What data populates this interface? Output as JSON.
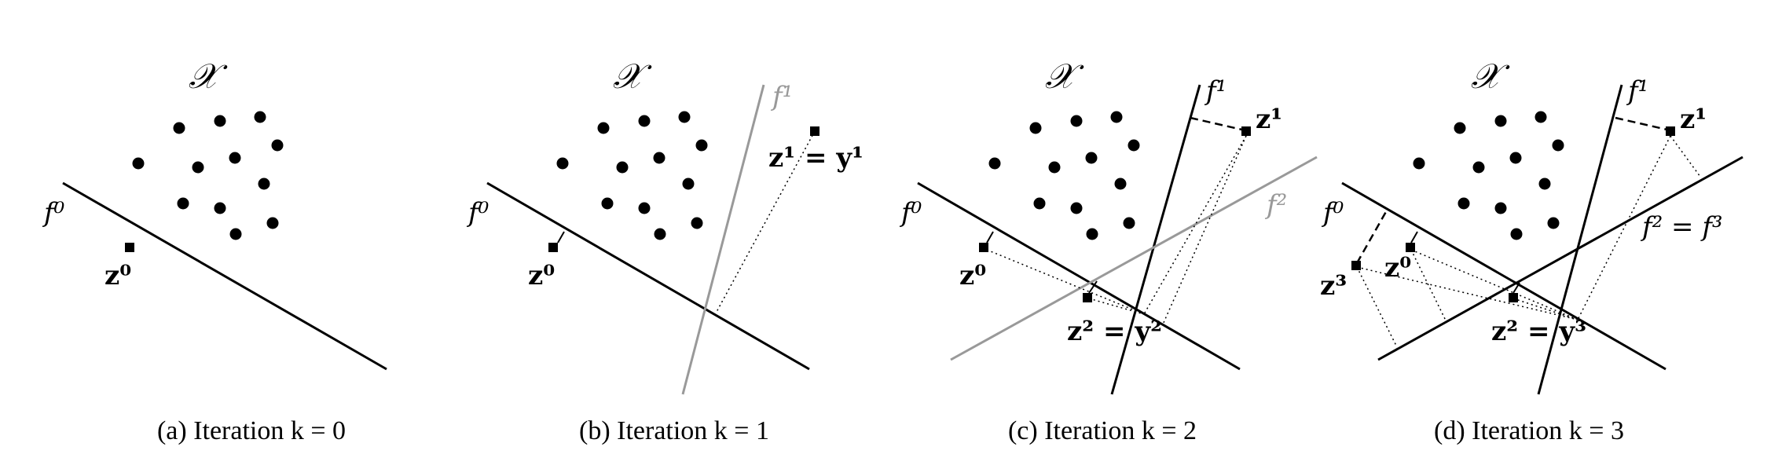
{
  "panels": [
    {
      "caption": "(a) Iteration k = 0",
      "set_label": "𝒳",
      "lines": [
        "f⁰"
      ],
      "points": [
        "z⁰"
      ]
    },
    {
      "caption": "(b) Iteration k = 1",
      "set_label": "𝒳",
      "lines": [
        "f⁰",
        "f¹"
      ],
      "points": [
        "z⁰",
        "z¹ = y¹"
      ]
    },
    {
      "caption": "(c) Iteration k = 2",
      "set_label": "𝒳",
      "lines": [
        "f⁰",
        "f¹",
        "f²"
      ],
      "points": [
        "z⁰",
        "z¹",
        "z² = y²"
      ]
    },
    {
      "caption": "(d) Iteration k = 3",
      "set_label": "𝒳",
      "lines": [
        "f⁰",
        "f¹",
        "f² = f³"
      ],
      "points": [
        "z³",
        "z⁰",
        "z¹",
        "z² = y³"
      ]
    }
  ],
  "colors": {
    "active_line": "#000000",
    "new_line": "#999999",
    "dot": "#000000"
  }
}
